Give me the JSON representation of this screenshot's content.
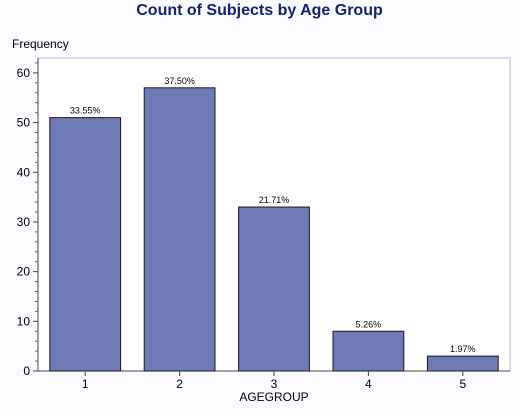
{
  "chart_data": {
    "type": "bar",
    "title": "Count of Subjects by Age Group",
    "xlabel": "AGEGROUP",
    "ylabel": "Frequency",
    "categories": [
      "1",
      "2",
      "3",
      "4",
      "5"
    ],
    "values": [
      51,
      57,
      33,
      8,
      3
    ],
    "data_labels": [
      "33.55%",
      "37.50%",
      "21.71%",
      "5.26%",
      "1.97%"
    ],
    "ylim": [
      0,
      63
    ],
    "yticks": [
      0,
      10,
      20,
      30,
      40,
      50,
      60
    ],
    "ytick_labels": [
      "0",
      "10",
      "20",
      "30",
      "40",
      "50",
      "60"
    ],
    "grid": false,
    "legend": "none",
    "colors": {
      "bar_fill": "#6e7ab5",
      "bar_stroke": "#1a1a1a",
      "title": "#112277",
      "plot_bg": "#ffffff",
      "page_bg": "#fafbfe"
    }
  }
}
